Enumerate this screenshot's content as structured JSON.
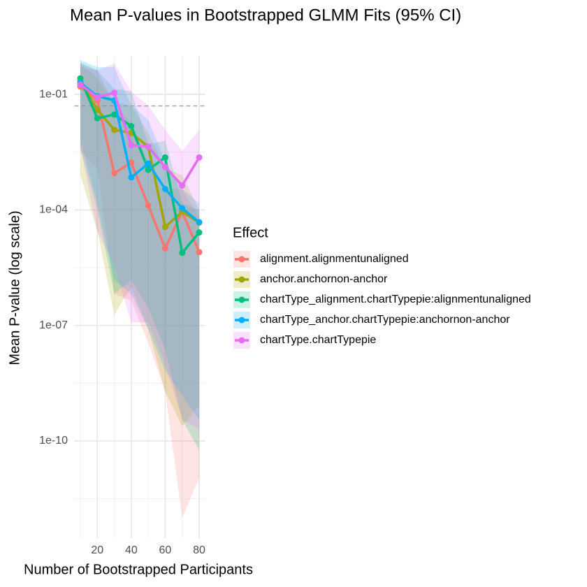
{
  "chart_data": {
    "type": "line",
    "title": "Mean P-values in Bootstrapped GLMM Fits (95% CI)",
    "x_label": "Number of Bootstrapped Participants",
    "y_label": "Mean P-value (log scale)",
    "legend_title": "Effect",
    "legend_position": "right",
    "log_y": true,
    "grid": true,
    "hline": 0.05,
    "x": [
      10,
      20,
      30,
      40,
      50,
      60,
      70,
      80
    ],
    "xlim": [
      6.5,
      83.5
    ],
    "xticks": [
      20,
      40,
      60,
      80
    ],
    "ylim": [
      3e-13,
      1
    ],
    "yticks": [
      {
        "value": 0.1,
        "label": "1e-01"
      },
      {
        "value": 0.0001,
        "label": "1e-04"
      },
      {
        "value": 1e-07,
        "label": "1e-07"
      },
      {
        "value": 1e-10,
        "label": "1e-10"
      }
    ],
    "series": [
      {
        "name": "alignment.alignmentunaligned",
        "color": "#F8766D",
        "values": [
          0.16,
          0.07,
          0.0009,
          0.0017,
          0.00013,
          1e-05,
          9e-05,
          8e-06
        ],
        "upper": [
          0.51,
          0.42,
          0.051,
          0.018,
          0.0018,
          0.00035,
          0.00035,
          6.5e-05
        ],
        "lower": [
          0.0034,
          0.0012,
          6.6e-07,
          4.4e-07,
          3.5e-08,
          1.9e-09,
          1e-12,
          1.1e-11
        ]
      },
      {
        "name": "anchor.anchornon-anchor",
        "color": "#A3A500",
        "values": [
          0.22,
          0.04,
          0.012,
          0.01,
          0.0044,
          3.6e-05,
          9e-05,
          4.7e-05
        ],
        "upper": [
          0.63,
          0.27,
          0.063,
          0.051,
          0.0098,
          0.0012,
          0.0008,
          0.0001
        ],
        "lower": [
          0.0008,
          2.8e-05,
          1.9e-07,
          1e-06,
          8e-08,
          1.9e-09,
          2.4e-10,
          8.3e-10
        ]
      },
      {
        "name": "chartType_alignment.chartTypepie:alignmentunaligned",
        "color": "#00BF7D",
        "values": [
          0.26,
          0.024,
          0.03,
          0.015,
          0.0011,
          0.0023,
          7.7e-06,
          2.6e-05
        ],
        "upper": [
          0.68,
          0.42,
          0.14,
          0.12,
          0.0051,
          0.0063,
          0.00015,
          0.0001
        ],
        "lower": [
          0.0042,
          0.0001,
          6.6e-07,
          1.5e-06,
          2.9e-07,
          2.3e-08,
          3.6e-10,
          5.7e-11
        ]
      },
      {
        "name": "chartType_anchor.chartTypepie:anchornon-anchor",
        "color": "#00B0F6",
        "values": [
          0.2,
          0.09,
          0.07,
          0.0007,
          0.0016,
          0.00035,
          0.00011,
          4.8e-05
        ],
        "upper": [
          0.78,
          0.51,
          0.51,
          0.051,
          0.022,
          0.0018,
          0.00035,
          0.00015
        ],
        "lower": [
          0.0063,
          0.00015,
          1.5e-06,
          6.6e-07,
          8e-08,
          6.7e-09,
          1.5e-09,
          3.6e-10
        ]
      },
      {
        "name": "chartType.chartTypepie",
        "color": "#E76BF3",
        "values": [
          0.18,
          0.085,
          0.11,
          0.0048,
          0.0044,
          0.0013,
          0.00043,
          0.0023
        ],
        "upper": [
          0.63,
          0.42,
          0.63,
          0.12,
          0.051,
          0.012,
          0.0034,
          0.012
        ],
        "lower": [
          0.0042,
          2.8e-05,
          3.5e-06,
          1.2e-07,
          1.2e-07,
          1e-08,
          3.6e-10,
          2e-10
        ]
      }
    ]
  }
}
